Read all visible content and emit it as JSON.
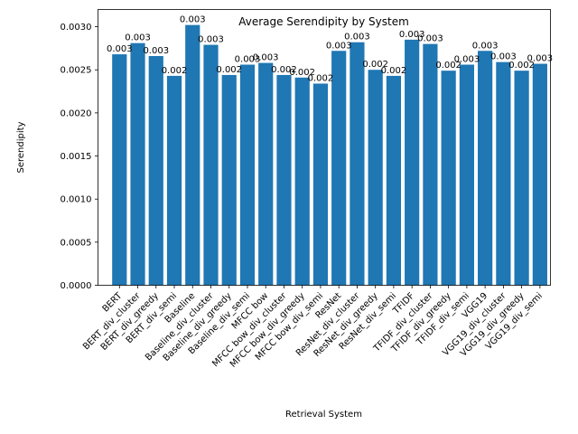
{
  "chart_data": {
    "type": "bar",
    "title": "Average Serendipity by System",
    "xlabel": "Retrieval System",
    "ylabel": "Serendipity",
    "ylim": [
      0,
      0.0032
    ],
    "yticks": [
      "0.0000",
      "0.0005",
      "0.0010",
      "0.0015",
      "0.0020",
      "0.0025",
      "0.0030"
    ],
    "ytick_values": [
      0,
      0.0005,
      0.001,
      0.0015,
      0.002,
      0.0025,
      0.003
    ],
    "bar_color": "#1f77b4",
    "grid": false,
    "legend": "none",
    "categories": [
      "BERT",
      "BERT_div_cluster",
      "BERT_div_greedy",
      "BERT_div_semi",
      "Baseline",
      "Baseline_div_cluster",
      "Baseline_div_greedy",
      "Baseline_div_semi",
      "MFCC bow",
      "MFCC bow_div_cluster",
      "MFCC bow_div_greedy",
      "MFCC bow_div_semi",
      "ResNet",
      "ResNet_div_cluster",
      "ResNet_div_greedy",
      "ResNet_div_semi",
      "TFIDF",
      "TFIDF_div_cluster",
      "TFIDF_div_greedy",
      "TFIDF_div_semi",
      "VGG19",
      "VGG19_div_cluster",
      "VGG19_div_greedy",
      "VGG19_div_semi"
    ],
    "values": [
      0.00268,
      0.00281,
      0.00266,
      0.00243,
      0.00302,
      0.00279,
      0.00244,
      0.00256,
      0.00258,
      0.00244,
      0.00241,
      0.00234,
      0.00272,
      0.00282,
      0.0025,
      0.00243,
      0.00285,
      0.0028,
      0.00249,
      0.00256,
      0.00272,
      0.00259,
      0.00249,
      0.00257
    ],
    "data_labels": [
      "0.003",
      "0.003",
      "0.003",
      "0.002",
      "0.003",
      "0.003",
      "0.002",
      "0.003",
      "0.003",
      "0.002",
      "0.002",
      "0.002",
      "0.003",
      "0.003",
      "0.002",
      "0.002",
      "0.003",
      "0.003",
      "0.002",
      "0.003",
      "0.003",
      "0.003",
      "0.002",
      "0.003"
    ]
  }
}
